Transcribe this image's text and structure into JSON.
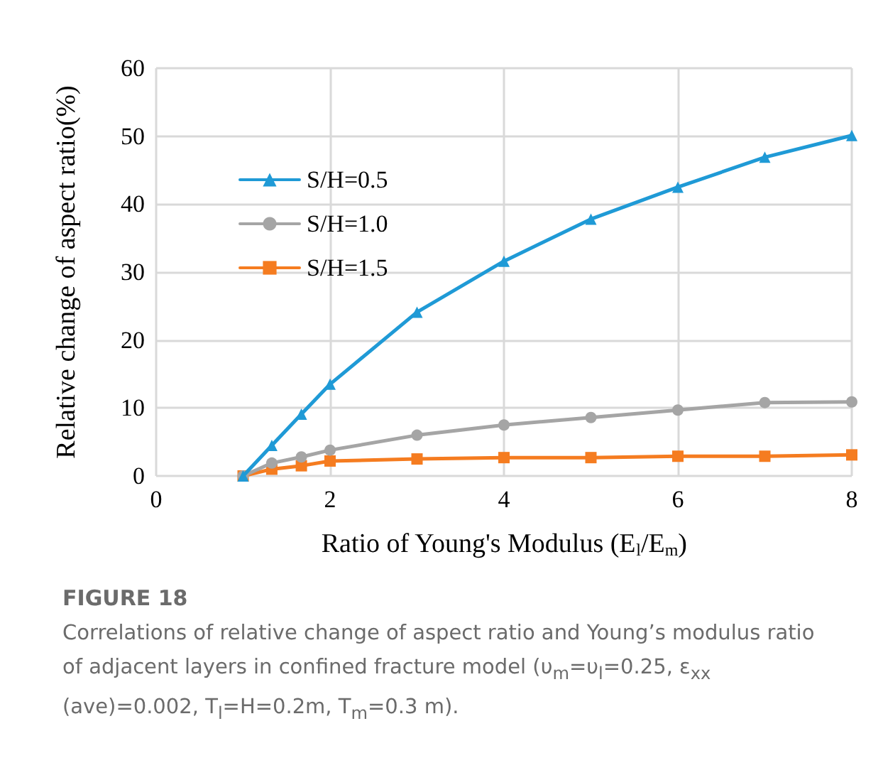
{
  "chart_data": {
    "type": "line",
    "xlabel": "Ratio of Young's Modulus (E$_{l}$/E$_{m}$)",
    "ylabel": "Relative change of aspect ratio(%)",
    "x": [
      1,
      1.33,
      1.67,
      2,
      3,
      4,
      5,
      6,
      7,
      8
    ],
    "series": [
      {
        "name": "S/H=0.5",
        "color": "#1f9ad6",
        "marker": "triangle",
        "values": [
          0,
          4.5,
          9.1,
          13.5,
          24.1,
          31.6,
          37.8,
          42.5,
          46.9,
          50.1
        ]
      },
      {
        "name": "S/H=1.0",
        "color": "#a5a5a5",
        "marker": "circle",
        "values": [
          0,
          1.9,
          2.8,
          3.8,
          6.0,
          7.5,
          8.6,
          9.7,
          10.8,
          10.9
        ]
      },
      {
        "name": "S/H=1.5",
        "color": "#f57c20",
        "marker": "square",
        "values": [
          0,
          1.0,
          1.5,
          2.2,
          2.5,
          2.7,
          2.7,
          2.9,
          2.9,
          3.1
        ]
      }
    ],
    "xlim": [
      0,
      8
    ],
    "xticks": [
      0,
      2,
      4,
      6,
      8
    ],
    "ylim": [
      0,
      60
    ],
    "yticks": [
      0,
      10,
      20,
      30,
      40,
      50,
      60
    ],
    "grid": true,
    "legend": "top left",
    "line_style": "solid",
    "annotations": [
      "FIGURE 18",
      "Correlations of relative change of aspect ratio and Young’s modulus ratio of adjacent layers in confined fracture model (υ$_{m}$=υ$_{l}$=0.25, ε$_{xx}$ (ave)=0.002, T$_{l}$=H=0.2m, T$_{m}$=0.3 m)."
    ]
  }
}
